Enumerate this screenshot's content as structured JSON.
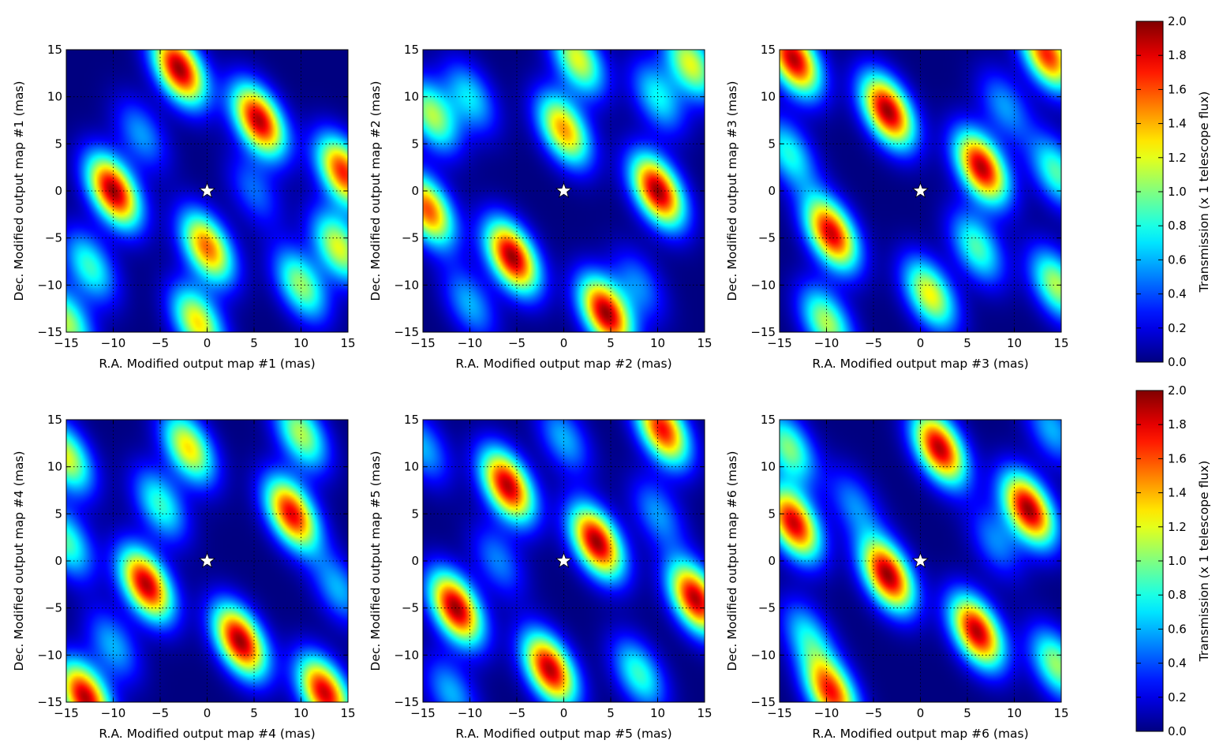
{
  "figure": {
    "background": "#ffffff"
  },
  "chart_data": [
    {
      "type": "heatmap",
      "xlabel": "R.A. Modified output map #1 (mas)",
      "ylabel": "Dec. Modified output map #1 (mas)",
      "xlim": [
        -15,
        15
      ],
      "ylim": [
        -15,
        15
      ],
      "xticks": [
        "−15",
        "−10",
        "−5",
        "0",
        "5",
        "10",
        "15"
      ],
      "yticks": [
        "−15",
        "−10",
        "−5",
        "0",
        "5",
        "10",
        "15"
      ],
      "grid": true,
      "colormap": "jet",
      "marker": {
        "symbol": "star",
        "x": 0,
        "y": 0,
        "color": "#ffffff"
      },
      "peaks": [
        {
          "x": -10,
          "y": 0,
          "v": 1.95
        },
        {
          "x": 5.5,
          "y": 7.5,
          "v": 1.9
        },
        {
          "x": -3,
          "y": 13,
          "v": 1.95
        },
        {
          "x": 0,
          "y": -6,
          "v": 1.55
        },
        {
          "x": 14.5,
          "y": 2,
          "v": 1.7
        },
        {
          "x": -12.5,
          "y": -8,
          "v": 0.85
        },
        {
          "x": 10,
          "y": -10,
          "v": 1.05
        },
        {
          "x": -1,
          "y": -14,
          "v": 1.3
        },
        {
          "x": 14,
          "y": -6,
          "v": 1.2
        },
        {
          "x": -15,
          "y": -14,
          "v": 1.1
        },
        {
          "x": -7,
          "y": 6,
          "v": 0.55
        },
        {
          "x": 5,
          "y": 0,
          "v": 0.45
        }
      ]
    },
    {
      "type": "heatmap",
      "xlabel": "R.A. Modified output map #2 (mas)",
      "ylabel": "Dec. Modified output map #2 (mas)",
      "xlim": [
        -15,
        15
      ],
      "ylim": [
        -15,
        15
      ],
      "xticks": [
        "−15",
        "−10",
        "−5",
        "0",
        "5",
        "10",
        "15"
      ],
      "yticks": [
        "−15",
        "−10",
        "−5",
        "0",
        "5",
        "10",
        "15"
      ],
      "grid": true,
      "colormap": "jet",
      "marker": {
        "symbol": "star",
        "x": 0,
        "y": 0,
        "color": "#ffffff"
      },
      "peaks": [
        {
          "x": -5.5,
          "y": -7,
          "v": 1.95
        },
        {
          "x": 10,
          "y": 0,
          "v": 1.95
        },
        {
          "x": 4.5,
          "y": -13,
          "v": 1.95
        },
        {
          "x": 0,
          "y": 6.5,
          "v": 1.45
        },
        {
          "x": -14.5,
          "y": -2,
          "v": 1.6
        },
        {
          "x": 13.5,
          "y": 13.5,
          "v": 1.2
        },
        {
          "x": 1.5,
          "y": 14,
          "v": 1.2
        },
        {
          "x": -14,
          "y": 8,
          "v": 1.1
        },
        {
          "x": -10,
          "y": 10,
          "v": 0.7
        },
        {
          "x": 10,
          "y": 10,
          "v": 0.75
        },
        {
          "x": -10,
          "y": -12,
          "v": 0.6
        },
        {
          "x": 8,
          "y": -10,
          "v": 0.5
        }
      ]
    },
    {
      "type": "heatmap",
      "xlabel": "R.A. Modified output map #3 (mas)",
      "ylabel": "Dec. Modified output map #3 (mas)",
      "xlim": [
        -15,
        15
      ],
      "ylim": [
        -15,
        15
      ],
      "xticks": [
        "−15",
        "−10",
        "−5",
        "0",
        "5",
        "10",
        "15"
      ],
      "yticks": [
        "−15",
        "−10",
        "−5",
        "0",
        "5",
        "10",
        "15"
      ],
      "grid": true,
      "colormap": "jet",
      "marker": {
        "symbol": "star",
        "x": 0,
        "y": 0,
        "color": "#ffffff"
      },
      "peaks": [
        {
          "x": -3.5,
          "y": 8.5,
          "v": 1.95
        },
        {
          "x": 6.5,
          "y": 2.5,
          "v": 1.9
        },
        {
          "x": -9.5,
          "y": -4.5,
          "v": 1.85
        },
        {
          "x": -13.5,
          "y": 14,
          "v": 1.9
        },
        {
          "x": 13.5,
          "y": 14.5,
          "v": 1.7
        },
        {
          "x": 1,
          "y": -11,
          "v": 1.25
        },
        {
          "x": 6,
          "y": -6,
          "v": 0.9
        },
        {
          "x": 14.5,
          "y": -10,
          "v": 1.1
        },
        {
          "x": 14.5,
          "y": 2,
          "v": 0.9
        },
        {
          "x": -10,
          "y": -14,
          "v": 1.1
        },
        {
          "x": -14,
          "y": 4,
          "v": 0.8
        },
        {
          "x": 9,
          "y": 9,
          "v": 0.55
        }
      ]
    },
    {
      "type": "heatmap",
      "xlabel": "R.A. Modified output map #4 (mas)",
      "ylabel": "Dec. Modified output map #4 (mas)",
      "xlim": [
        -15,
        15
      ],
      "ylim": [
        -15,
        15
      ],
      "xticks": [
        "−15",
        "−10",
        "−5",
        "0",
        "5",
        "10",
        "15"
      ],
      "yticks": [
        "−15",
        "−10",
        "−5",
        "0",
        "5",
        "10",
        "15"
      ],
      "grid": true,
      "colormap": "jet",
      "marker": {
        "symbol": "star",
        "x": 0,
        "y": 0,
        "color": "#ffffff"
      },
      "peaks": [
        {
          "x": -6.5,
          "y": -2.5,
          "v": 1.9
        },
        {
          "x": 3.5,
          "y": -8.5,
          "v": 1.95
        },
        {
          "x": 9,
          "y": 5,
          "v": 1.8
        },
        {
          "x": -13,
          "y": -14.5,
          "v": 1.9
        },
        {
          "x": 12.5,
          "y": -14,
          "v": 1.85
        },
        {
          "x": -2,
          "y": 12,
          "v": 1.3
        },
        {
          "x": -5,
          "y": 6,
          "v": 0.85
        },
        {
          "x": 10,
          "y": 13.5,
          "v": 1.1
        },
        {
          "x": -15,
          "y": 11,
          "v": 1.2
        },
        {
          "x": -15,
          "y": 2,
          "v": 0.9
        },
        {
          "x": -10,
          "y": -9,
          "v": 0.6
        },
        {
          "x": 14,
          "y": -3,
          "v": 0.6
        }
      ]
    },
    {
      "type": "heatmap",
      "xlabel": "R.A. Modified output map #5 (mas)",
      "ylabel": "Dec. Modified output map #5 (mas)",
      "xlim": [
        -15,
        15
      ],
      "ylim": [
        -15,
        15
      ],
      "xticks": [
        "−15",
        "−10",
        "−5",
        "0",
        "5",
        "10",
        "15"
      ],
      "yticks": [
        "−15",
        "−10",
        "−5",
        "0",
        "5",
        "10",
        "15"
      ],
      "grid": true,
      "colormap": "jet",
      "marker": {
        "symbol": "star",
        "x": 0,
        "y": 0,
        "color": "#ffffff"
      },
      "peaks": [
        {
          "x": 3.5,
          "y": 2,
          "v": 1.95
        },
        {
          "x": -11.5,
          "y": -5,
          "v": 1.95
        },
        {
          "x": -6,
          "y": 8,
          "v": 1.9
        },
        {
          "x": -1.5,
          "y": -11.5,
          "v": 1.9
        },
        {
          "x": 14,
          "y": -4,
          "v": 1.9
        },
        {
          "x": 10.5,
          "y": 14,
          "v": 1.75
        },
        {
          "x": 8,
          "y": -12,
          "v": 0.85
        },
        {
          "x": -15,
          "y": 12,
          "v": 0.6
        },
        {
          "x": 0,
          "y": 13,
          "v": 0.6
        },
        {
          "x": 10,
          "y": 5,
          "v": 0.55
        },
        {
          "x": -7,
          "y": 0,
          "v": 0.5
        },
        {
          "x": -12,
          "y": -14,
          "v": 0.6
        }
      ]
    },
    {
      "type": "heatmap",
      "xlabel": "R.A. Modified output map #6 (mas)",
      "ylabel": "Dec. Modified output map #6 (mas)",
      "xlim": [
        -15,
        15
      ],
      "ylim": [
        -15,
        15
      ],
      "xticks": [
        "−15",
        "−10",
        "−5",
        "0",
        "5",
        "10",
        "15"
      ],
      "yticks": [
        "−15",
        "−10",
        "−5",
        "0",
        "5",
        "10",
        "15"
      ],
      "grid": true,
      "colormap": "jet",
      "marker": {
        "symbol": "star",
        "x": 0,
        "y": 0,
        "color": "#ffffff"
      },
      "peaks": [
        {
          "x": -3.5,
          "y": -1.5,
          "v": 1.95
        },
        {
          "x": 11.5,
          "y": 5.5,
          "v": 1.95
        },
        {
          "x": 2,
          "y": 12,
          "v": 1.9
        },
        {
          "x": -13.5,
          "y": 4,
          "v": 1.85
        },
        {
          "x": 6,
          "y": -7.5,
          "v": 1.9
        },
        {
          "x": -9.5,
          "y": -14,
          "v": 1.7
        },
        {
          "x": -14,
          "y": 12,
          "v": 1.0
        },
        {
          "x": 14.5,
          "y": -11,
          "v": 1.05
        },
        {
          "x": -12,
          "y": -8,
          "v": 0.7
        },
        {
          "x": 8,
          "y": 2,
          "v": 0.5
        },
        {
          "x": 14,
          "y": 14,
          "v": 0.6
        },
        {
          "x": -7,
          "y": 6,
          "v": 0.5
        }
      ]
    }
  ],
  "colorbars": [
    {
      "label": "Transmission (x 1 telescope flux)",
      "range": [
        0.0,
        2.0
      ],
      "ticks": [
        "0.0",
        "0.2",
        "0.4",
        "0.6",
        "0.8",
        "1.0",
        "1.2",
        "1.4",
        "1.6",
        "1.8",
        "2.0"
      ],
      "colormap": "jet"
    },
    {
      "label": "Transmission (x 1 telescope flux)",
      "range": [
        0.0,
        2.0
      ],
      "ticks": [
        "0.0",
        "0.2",
        "0.4",
        "0.6",
        "0.8",
        "1.0",
        "1.2",
        "1.4",
        "1.6",
        "1.8",
        "2.0"
      ],
      "colormap": "jet"
    }
  ]
}
